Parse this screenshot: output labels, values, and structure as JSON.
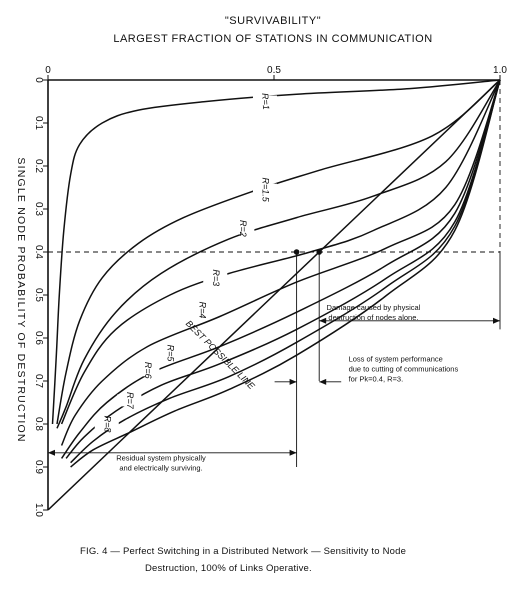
{
  "chart_data": {
    "type": "line",
    "title": "\"SURVIVABILITY\"",
    "subtitle": "LARGEST FRACTION OF STATIONS IN COMMUNICATION",
    "xlabel": "\"SURVIVABILITY\" LARGEST FRACTION OF STATIONS IN COMMUNICATION",
    "ylabel": "SINGLE NODE PROBABILITY OF DESTRUCTION",
    "xlim": [
      0,
      1.0
    ],
    "ylim": [
      0,
      1.0
    ],
    "y_inverted": true,
    "x_ticks": [
      "0",
      "0.5",
      "1.0"
    ],
    "y_ticks": [
      "0",
      "0.1",
      "0.2",
      "0.3",
      "0.4",
      "0.5",
      "0.6",
      "0.7",
      "0.8",
      "0.9",
      "1.0"
    ],
    "grid": false,
    "series": [
      {
        "name": "R=1",
        "points": [
          [
            1.0,
            0.0
          ],
          [
            0.8,
            0.02
          ],
          [
            0.55,
            0.033
          ],
          [
            0.35,
            0.05
          ],
          [
            0.2,
            0.07
          ],
          [
            0.12,
            0.1
          ],
          [
            0.07,
            0.15
          ],
          [
            0.05,
            0.22
          ],
          [
            0.035,
            0.35
          ],
          [
            0.025,
            0.5
          ],
          [
            0.018,
            0.65
          ],
          [
            0.01,
            0.8
          ]
        ]
      },
      {
        "name": "R=1.5",
        "points": [
          [
            1.0,
            0.0
          ],
          [
            0.85,
            0.13
          ],
          [
            0.6,
            0.21
          ],
          [
            0.45,
            0.26
          ],
          [
            0.3,
            0.32
          ],
          [
            0.2,
            0.38
          ],
          [
            0.12,
            0.46
          ],
          [
            0.07,
            0.56
          ],
          [
            0.04,
            0.68
          ],
          [
            0.02,
            0.8
          ]
        ]
      },
      {
        "name": "R=2",
        "points": [
          [
            1.0,
            0.0
          ],
          [
            0.88,
            0.19
          ],
          [
            0.72,
            0.27
          ],
          [
            0.55,
            0.32
          ],
          [
            0.4,
            0.37
          ],
          [
            0.25,
            0.45
          ],
          [
            0.15,
            0.54
          ],
          [
            0.08,
            0.65
          ],
          [
            0.04,
            0.76
          ],
          [
            0.02,
            0.81
          ]
        ]
      },
      {
        "name": "R=3",
        "points": [
          [
            1.0,
            0.0
          ],
          [
            0.88,
            0.25
          ],
          [
            0.72,
            0.35
          ],
          [
            0.58,
            0.4
          ],
          [
            0.4,
            0.45
          ],
          [
            0.27,
            0.5
          ],
          [
            0.15,
            0.58
          ],
          [
            0.08,
            0.68
          ],
          [
            0.03,
            0.8
          ]
        ]
      },
      {
        "name": "R=4",
        "points": [
          [
            1.0,
            0.0
          ],
          [
            0.9,
            0.29
          ],
          [
            0.75,
            0.39
          ],
          [
            0.55,
            0.47
          ],
          [
            0.38,
            0.55
          ],
          [
            0.22,
            0.62
          ],
          [
            0.12,
            0.7
          ],
          [
            0.06,
            0.78
          ],
          [
            0.03,
            0.85
          ]
        ]
      },
      {
        "name": "R=5",
        "points": [
          [
            1.0,
            0.0
          ],
          [
            0.9,
            0.31
          ],
          [
            0.75,
            0.43
          ],
          [
            0.55,
            0.54
          ],
          [
            0.38,
            0.62
          ],
          [
            0.23,
            0.68
          ],
          [
            0.13,
            0.75
          ],
          [
            0.07,
            0.82
          ],
          [
            0.03,
            0.88
          ]
        ]
      },
      {
        "name": "R=6",
        "points": [
          [
            1.0,
            0.0
          ],
          [
            0.9,
            0.33
          ],
          [
            0.75,
            0.46
          ],
          [
            0.55,
            0.58
          ],
          [
            0.38,
            0.66
          ],
          [
            0.25,
            0.71
          ],
          [
            0.15,
            0.77
          ],
          [
            0.08,
            0.83
          ],
          [
            0.04,
            0.88
          ]
        ]
      },
      {
        "name": "R=7",
        "points": [
          [
            1.0,
            0.0
          ],
          [
            0.9,
            0.34
          ],
          [
            0.75,
            0.48
          ],
          [
            0.55,
            0.61
          ],
          [
            0.4,
            0.69
          ],
          [
            0.27,
            0.74
          ],
          [
            0.17,
            0.79
          ],
          [
            0.1,
            0.84
          ],
          [
            0.05,
            0.89
          ]
        ]
      },
      {
        "name": "R=8",
        "points": [
          [
            1.0,
            0.0
          ],
          [
            0.9,
            0.35
          ],
          [
            0.75,
            0.5
          ],
          [
            0.55,
            0.64
          ],
          [
            0.4,
            0.72
          ],
          [
            0.28,
            0.77
          ],
          [
            0.18,
            0.82
          ],
          [
            0.1,
            0.86
          ],
          [
            0.05,
            0.9
          ]
        ]
      },
      {
        "name": "BEST POSSIBLE LINE",
        "points": [
          [
            1.0,
            0.0
          ],
          [
            0.0,
            1.0
          ]
        ]
      }
    ],
    "reference_lines": [
      {
        "type": "horizontal",
        "y": 0.4,
        "style": "dashed"
      },
      {
        "type": "vertical",
        "x": 1.0,
        "y_from": 0.0,
        "y_to": 0.4,
        "style": "dashed"
      }
    ],
    "markers": [
      [
        0.55,
        0.4
      ],
      [
        0.6,
        0.4
      ]
    ],
    "annotations": [
      {
        "key": "damage",
        "lines": [
          "Damage caused by physical",
          "destruction of nodes alone."
        ]
      },
      {
        "key": "loss",
        "lines": [
          "Loss of system performance",
          "due to cutting of communications",
          "for Pk=0.4, R=3."
        ]
      },
      {
        "key": "residual",
        "lines": [
          "Residual system physically",
          "and electrically surviving."
        ]
      }
    ]
  },
  "caption": {
    "line1": "FIG. 4 — Perfect Switching in a Distributed Network — Sensitivity to Node",
    "line2": "Destruction, 100% of Links Operative."
  }
}
